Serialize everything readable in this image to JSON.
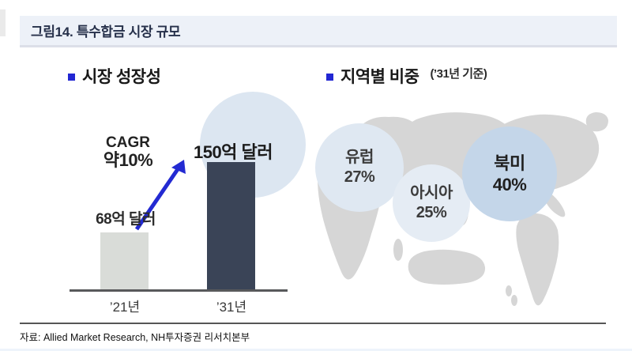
{
  "figure": {
    "title": "그림14. 특수합금 시장 규모",
    "source": "자료: Allied Market Research, NH투자증권 리서치본부"
  },
  "left_panel": {
    "header": "시장 성장성",
    "cagr_line1": "CAGR",
    "cagr_line2": "약10%",
    "value_label_2021": "68억 달러",
    "value_label_2031": "150억 달러",
    "year_2021": "’21년",
    "year_2031": "’31년"
  },
  "right_panel": {
    "header": "지역별 비중",
    "header_suffix": "(’31년 기준)",
    "regions": [
      {
        "name": "유럽",
        "share": "27%"
      },
      {
        "name": "아시아",
        "share": "25%"
      },
      {
        "name": "북미",
        "share": "40%"
      }
    ]
  },
  "icons": {
    "left_bullet": "bullet-square-icon",
    "right_bullet": "bullet-square-icon",
    "arrow": "growth-arrow-icon",
    "map": "world-map-silhouette"
  },
  "colors": {
    "title_bar_bg": "#edf1f8",
    "bullet_blue": "#2227d3",
    "arrow_blue": "#232ad2",
    "bar_2021": "#d9dcd8",
    "bar_2031": "#3a4457",
    "growth_circle": "#dce6f1",
    "bubble_europe": "#dfe8f2",
    "bubble_asia": "#e5ecf4",
    "bubble_north_america": "#c4d6e9",
    "map_gray": "#d6d6d6"
  },
  "chart_data": [
    {
      "type": "bar",
      "title": "시장 성장성",
      "categories": [
        "’21년",
        "’31년"
      ],
      "values": [
        68,
        150
      ],
      "unit": "억 달러",
      "data_labels": [
        "68억 달러",
        "150억 달러"
      ],
      "annotations": [
        "CAGR 약10%"
      ],
      "ylim": [
        0,
        150
      ],
      "xlabel": "",
      "ylabel": "",
      "grid": false,
      "legend": false
    },
    {
      "type": "bubble",
      "title": "지역별 비중 (’31년 기준)",
      "categories": [
        "유럽",
        "아시아",
        "북미"
      ],
      "values": [
        27,
        25,
        40
      ],
      "unit": "%",
      "background": "world map silhouette, Pacific-centered",
      "legend": false
    }
  ]
}
